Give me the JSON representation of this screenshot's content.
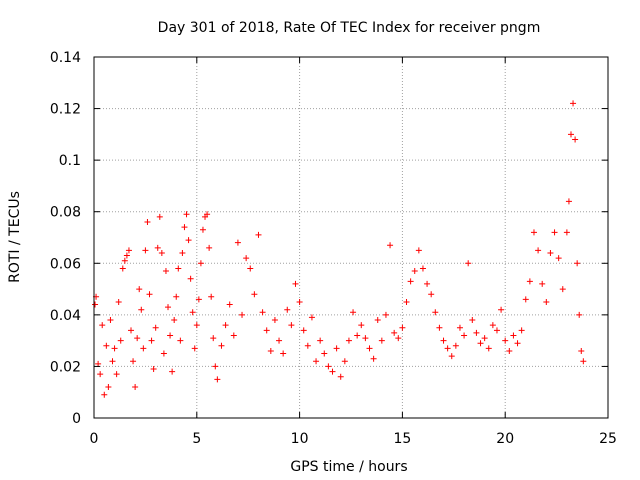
{
  "chart_data": {
    "type": "scatter",
    "title": "Day 301 of 2018, Rate Of TEC Index for receiver pngm",
    "xlabel": "GPS time / hours",
    "ylabel": "ROTI / TECUs",
    "xlim": [
      0,
      25
    ],
    "ylim": [
      0,
      0.14
    ],
    "grid": true,
    "marker": "+",
    "series_color": "#ff0000",
    "x_ticks": [
      0,
      5,
      10,
      15,
      20,
      25
    ],
    "x_tick_labels": [
      "0",
      "5",
      "10",
      "15",
      "20",
      "25"
    ],
    "y_ticks": [
      0,
      0.02,
      0.04,
      0.06,
      0.08,
      0.1,
      0.12,
      0.14
    ],
    "y_tick_labels": [
      "0",
      "0.02",
      "0.04",
      "0.06",
      "0.08",
      "0.1",
      "0.12",
      "0.14"
    ],
    "series": [
      {
        "name": "ROTI",
        "points": [
          [
            0.05,
            0.044
          ],
          [
            0.1,
            0.047
          ],
          [
            0.2,
            0.021
          ],
          [
            0.3,
            0.017
          ],
          [
            0.4,
            0.036
          ],
          [
            0.5,
            0.009
          ],
          [
            0.6,
            0.028
          ],
          [
            0.7,
            0.012
          ],
          [
            0.8,
            0.038
          ],
          [
            0.9,
            0.022
          ],
          [
            1.0,
            0.027
          ],
          [
            1.1,
            0.017
          ],
          [
            1.2,
            0.045
          ],
          [
            1.3,
            0.03
          ],
          [
            1.4,
            0.058
          ],
          [
            1.5,
            0.061
          ],
          [
            1.6,
            0.063
          ],
          [
            1.7,
            0.065
          ],
          [
            1.8,
            0.034
          ],
          [
            1.9,
            0.022
          ],
          [
            2.0,
            0.012
          ],
          [
            2.1,
            0.031
          ],
          [
            2.2,
            0.05
          ],
          [
            2.3,
            0.042
          ],
          [
            2.4,
            0.027
          ],
          [
            2.5,
            0.065
          ],
          [
            2.6,
            0.076
          ],
          [
            2.7,
            0.048
          ],
          [
            2.8,
            0.03
          ],
          [
            2.9,
            0.019
          ],
          [
            3.0,
            0.035
          ],
          [
            3.1,
            0.066
          ],
          [
            3.2,
            0.078
          ],
          [
            3.3,
            0.064
          ],
          [
            3.4,
            0.025
          ],
          [
            3.5,
            0.057
          ],
          [
            3.6,
            0.043
          ],
          [
            3.7,
            0.032
          ],
          [
            3.8,
            0.018
          ],
          [
            3.9,
            0.038
          ],
          [
            4.0,
            0.047
          ],
          [
            4.1,
            0.058
          ],
          [
            4.2,
            0.03
          ],
          [
            4.3,
            0.064
          ],
          [
            4.4,
            0.074
          ],
          [
            4.5,
            0.079
          ],
          [
            4.6,
            0.069
          ],
          [
            4.7,
            0.054
          ],
          [
            4.8,
            0.041
          ],
          [
            4.9,
            0.027
          ],
          [
            5.0,
            0.036
          ],
          [
            5.1,
            0.046
          ],
          [
            5.2,
            0.06
          ],
          [
            5.3,
            0.073
          ],
          [
            5.4,
            0.078
          ],
          [
            5.5,
            0.079
          ],
          [
            5.6,
            0.066
          ],
          [
            5.7,
            0.047
          ],
          [
            5.8,
            0.031
          ],
          [
            5.9,
            0.02
          ],
          [
            6.0,
            0.015
          ],
          [
            6.2,
            0.028
          ],
          [
            6.4,
            0.036
          ],
          [
            6.6,
            0.044
          ],
          [
            6.8,
            0.032
          ],
          [
            7.0,
            0.068
          ],
          [
            7.2,
            0.04
          ],
          [
            7.4,
            0.062
          ],
          [
            7.6,
            0.058
          ],
          [
            7.8,
            0.048
          ],
          [
            8.0,
            0.071
          ],
          [
            8.2,
            0.041
          ],
          [
            8.4,
            0.034
          ],
          [
            8.6,
            0.026
          ],
          [
            8.8,
            0.038
          ],
          [
            9.0,
            0.03
          ],
          [
            9.2,
            0.025
          ],
          [
            9.4,
            0.042
          ],
          [
            9.6,
            0.036
          ],
          [
            9.8,
            0.052
          ],
          [
            10.0,
            0.045
          ],
          [
            10.2,
            0.034
          ],
          [
            10.4,
            0.028
          ],
          [
            10.6,
            0.039
          ],
          [
            10.8,
            0.022
          ],
          [
            11.0,
            0.03
          ],
          [
            11.2,
            0.025
          ],
          [
            11.4,
            0.02
          ],
          [
            11.6,
            0.018
          ],
          [
            11.8,
            0.027
          ],
          [
            12.0,
            0.016
          ],
          [
            12.2,
            0.022
          ],
          [
            12.4,
            0.03
          ],
          [
            12.6,
            0.041
          ],
          [
            12.8,
            0.032
          ],
          [
            13.0,
            0.036
          ],
          [
            13.2,
            0.031
          ],
          [
            13.4,
            0.027
          ],
          [
            13.6,
            0.023
          ],
          [
            13.8,
            0.038
          ],
          [
            14.0,
            0.03
          ],
          [
            14.2,
            0.04
          ],
          [
            14.4,
            0.067
          ],
          [
            14.6,
            0.033
          ],
          [
            14.8,
            0.031
          ],
          [
            15.0,
            0.035
          ],
          [
            15.2,
            0.045
          ],
          [
            15.4,
            0.053
          ],
          [
            15.6,
            0.057
          ],
          [
            15.8,
            0.065
          ],
          [
            16.0,
            0.058
          ],
          [
            16.2,
            0.052
          ],
          [
            16.4,
            0.048
          ],
          [
            16.6,
            0.041
          ],
          [
            16.8,
            0.035
          ],
          [
            17.0,
            0.03
          ],
          [
            17.2,
            0.027
          ],
          [
            17.4,
            0.024
          ],
          [
            17.6,
            0.028
          ],
          [
            17.8,
            0.035
          ],
          [
            18.0,
            0.032
          ],
          [
            18.2,
            0.06
          ],
          [
            18.4,
            0.038
          ],
          [
            18.6,
            0.033
          ],
          [
            18.8,
            0.029
          ],
          [
            19.0,
            0.031
          ],
          [
            19.2,
            0.027
          ],
          [
            19.4,
            0.036
          ],
          [
            19.6,
            0.034
          ],
          [
            19.8,
            0.042
          ],
          [
            20.0,
            0.03
          ],
          [
            20.2,
            0.026
          ],
          [
            20.4,
            0.032
          ],
          [
            20.6,
            0.029
          ],
          [
            20.8,
            0.034
          ],
          [
            21.0,
            0.046
          ],
          [
            21.2,
            0.053
          ],
          [
            21.4,
            0.072
          ],
          [
            21.6,
            0.065
          ],
          [
            21.8,
            0.052
          ],
          [
            22.0,
            0.045
          ],
          [
            22.2,
            0.064
          ],
          [
            22.4,
            0.072
          ],
          [
            22.6,
            0.062
          ],
          [
            22.8,
            0.05
          ],
          [
            23.0,
            0.072
          ],
          [
            23.1,
            0.084
          ],
          [
            23.2,
            0.11
          ],
          [
            23.3,
            0.122
          ],
          [
            23.4,
            0.108
          ],
          [
            23.5,
            0.06
          ],
          [
            23.6,
            0.04
          ],
          [
            23.7,
            0.026
          ],
          [
            23.8,
            0.022
          ]
        ]
      }
    ]
  }
}
